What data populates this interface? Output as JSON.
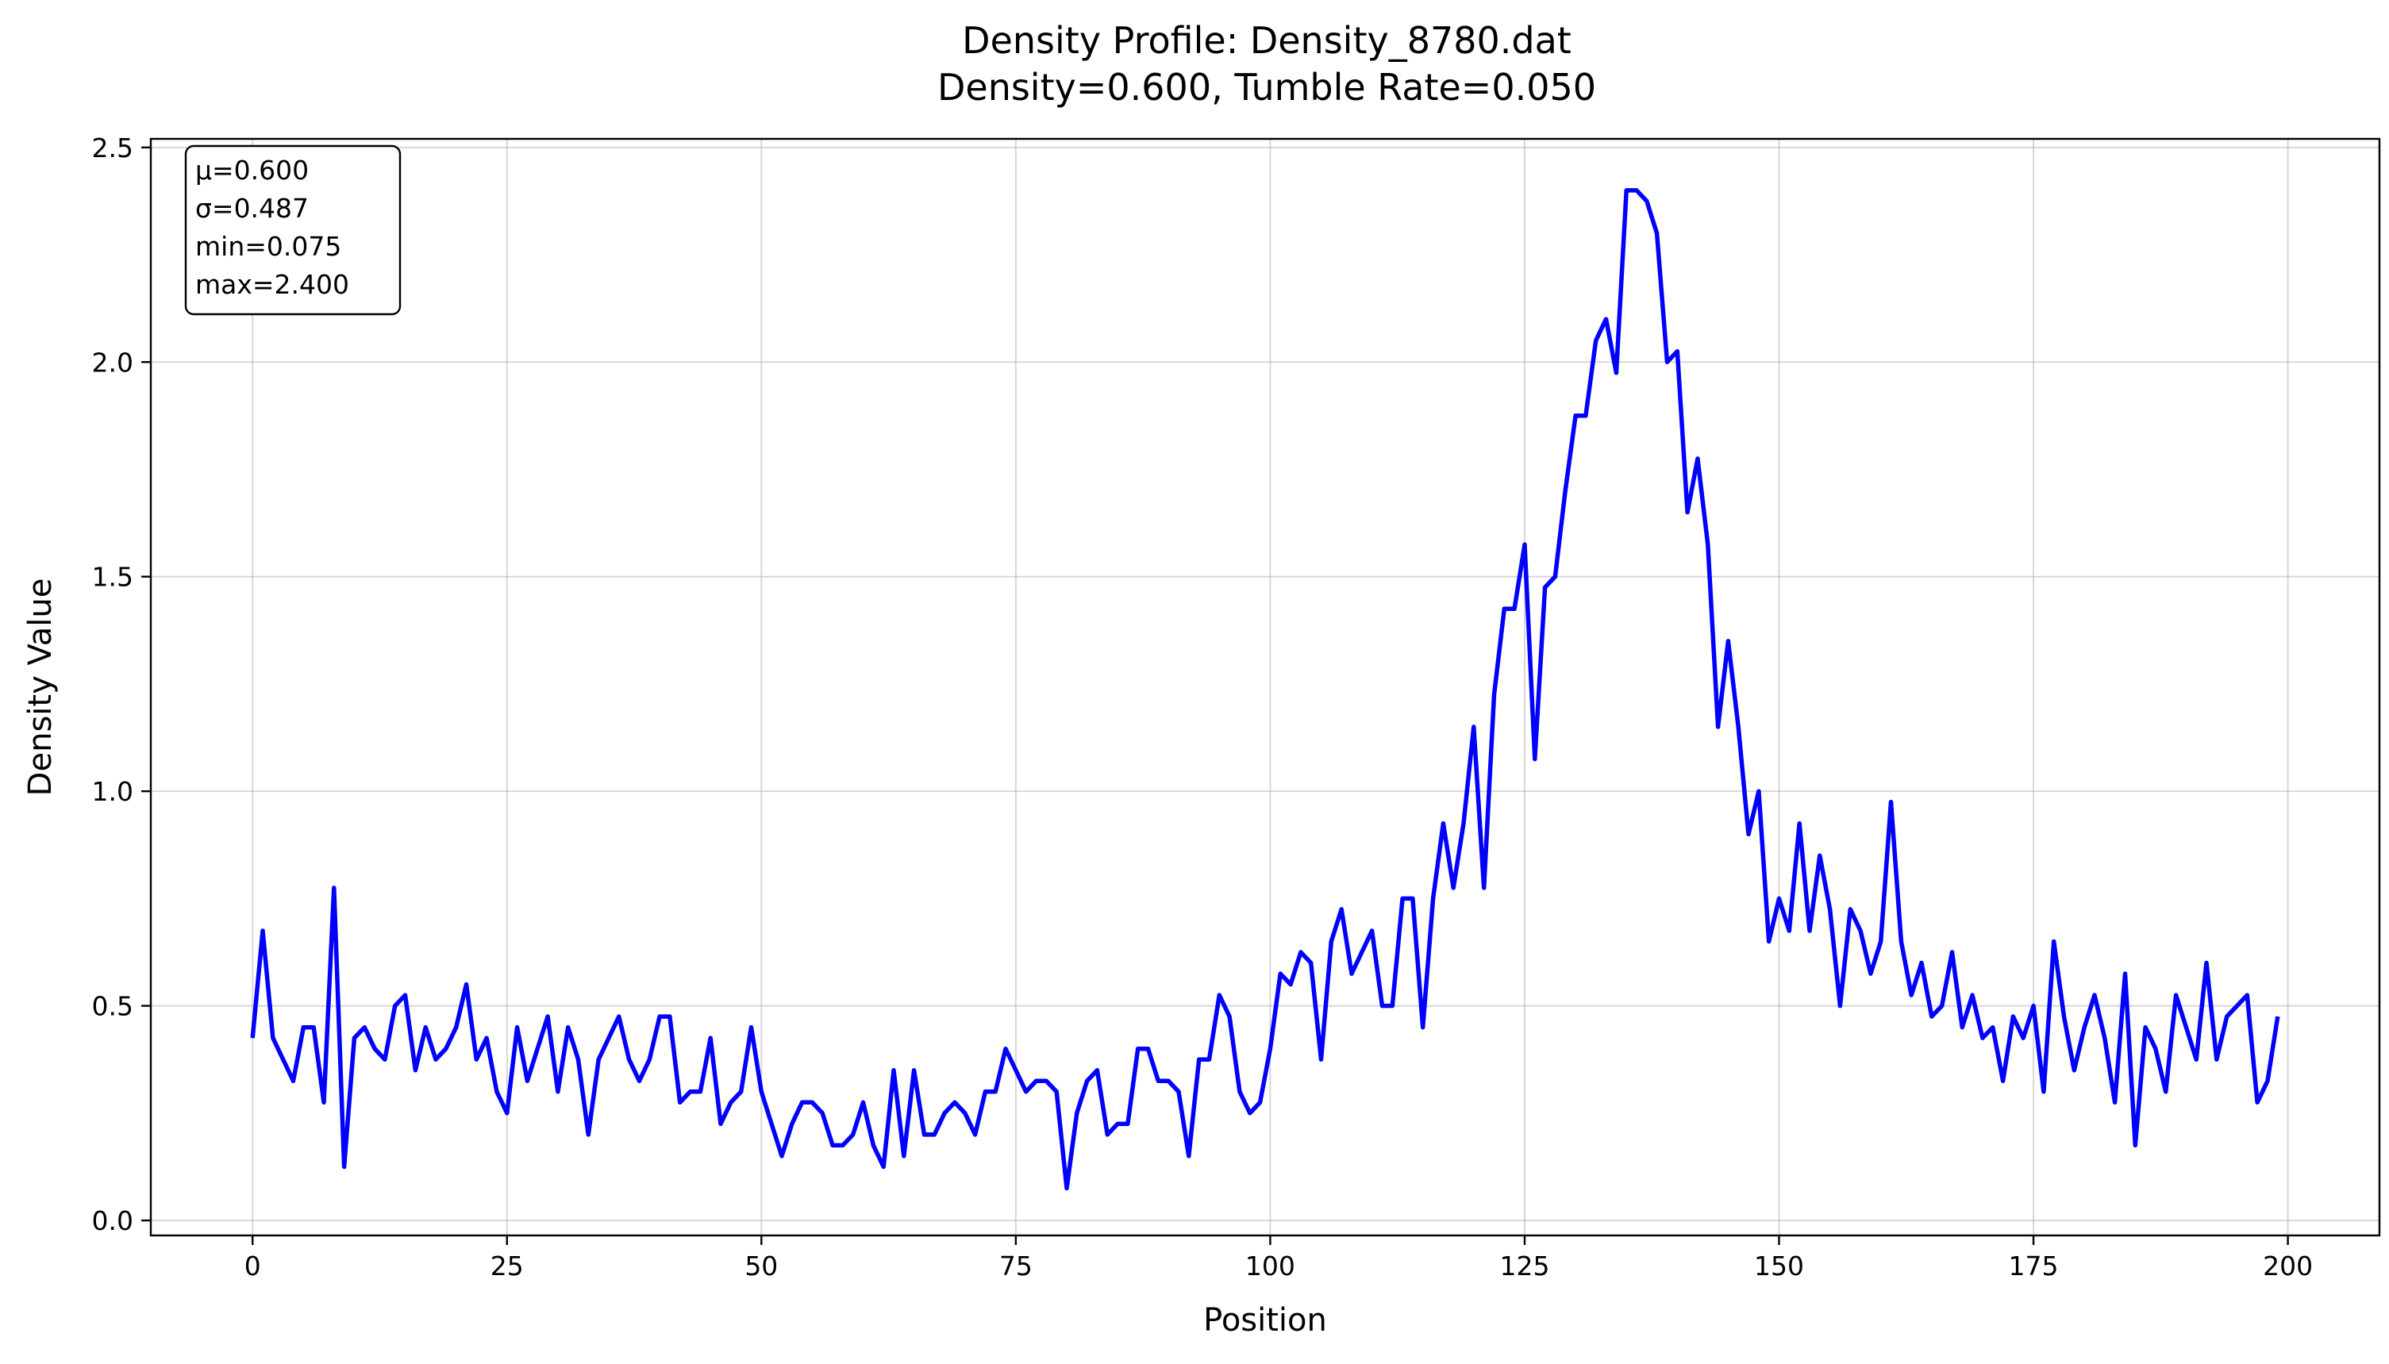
{
  "chart_data": {
    "type": "line",
    "title": "Density Profile: Density_8780.dat",
    "subtitle": "Density=0.600, Tumble Rate=0.050",
    "xlabel": "Position",
    "ylabel": "Density Value",
    "xlim": [
      -10,
      209
    ],
    "ylim": [
      -0.035,
      2.52
    ],
    "xticks": [
      0,
      25,
      50,
      75,
      100,
      125,
      150,
      175,
      200
    ],
    "yticks": [
      0.0,
      0.5,
      1.0,
      1.5,
      2.0,
      2.5
    ],
    "xtick_labels": [
      "0",
      "25",
      "50",
      "75",
      "100",
      "125",
      "150",
      "175",
      "200"
    ],
    "ytick_labels": [
      "0.0",
      "0.5",
      "1.0",
      "1.5",
      "2.0",
      "2.5"
    ],
    "grid": true,
    "stats_box": {
      "position": "top-left",
      "lines": [
        "μ=0.600",
        "σ=0.487",
        "min=0.075",
        "max=2.400"
      ]
    },
    "series": [
      {
        "color": "#0000ff",
        "x_start": 0,
        "x_step": 1,
        "values": [
          0.425,
          0.675,
          0.425,
          0.375,
          0.325,
          0.45,
          0.45,
          0.275,
          0.775,
          0.125,
          0.425,
          0.45,
          0.4,
          0.375,
          0.5,
          0.525,
          0.35,
          0.45,
          0.375,
          0.4,
          0.45,
          0.55,
          0.375,
          0.425,
          0.3,
          0.25,
          0.45,
          0.325,
          0.4,
          0.475,
          0.3,
          0.45,
          0.375,
          0.2,
          0.375,
          0.425,
          0.475,
          0.375,
          0.325,
          0.375,
          0.475,
          0.475,
          0.275,
          0.3,
          0.3,
          0.425,
          0.225,
          0.275,
          0.3,
          0.45,
          0.3,
          0.225,
          0.15,
          0.225,
          0.275,
          0.275,
          0.25,
          0.175,
          0.175,
          0.2,
          0.275,
          0.175,
          0.125,
          0.35,
          0.15,
          0.35,
          0.2,
          0.2,
          0.25,
          0.275,
          0.25,
          0.2,
          0.3,
          0.3,
          0.4,
          0.35,
          0.3,
          0.325,
          0.325,
          0.3,
          0.075,
          0.25,
          0.325,
          0.35,
          0.2,
          0.225,
          0.225,
          0.4,
          0.4,
          0.325,
          0.325,
          0.3,
          0.15,
          0.375,
          0.375,
          0.525,
          0.475,
          0.3,
          0.25,
          0.275,
          0.4,
          0.575,
          0.55,
          0.625,
          0.6,
          0.375,
          0.65,
          0.725,
          0.575,
          0.625,
          0.675,
          0.5,
          0.5,
          0.75,
          0.75,
          0.45,
          0.75,
          0.925,
          0.775,
          0.925,
          1.15,
          0.775,
          1.225,
          1.425,
          1.425,
          1.575,
          1.075,
          1.475,
          1.5,
          1.7,
          1.875,
          1.875,
          2.05,
          2.1,
          1.975,
          2.4,
          2.4,
          2.375,
          2.3,
          2.0,
          2.025,
          1.65,
          1.775,
          1.575,
          1.15,
          1.35,
          1.15,
          0.9,
          1.0,
          0.65,
          0.75,
          0.675,
          0.925,
          0.675,
          0.85,
          0.725,
          0.5,
          0.725,
          0.675,
          0.575,
          0.65,
          0.975,
          0.65,
          0.525,
          0.6,
          0.475,
          0.5,
          0.625,
          0.45,
          0.525,
          0.425,
          0.45,
          0.325,
          0.475,
          0.425,
          0.5,
          0.3,
          0.65,
          0.475,
          0.35,
          0.45,
          0.525,
          0.425,
          0.275,
          0.575,
          0.175,
          0.45,
          0.4,
          0.3,
          0.525,
          0.45,
          0.375,
          0.6,
          0.375,
          0.475,
          0.5,
          0.525,
          0.275,
          0.325,
          0.475
        ]
      }
    ]
  }
}
